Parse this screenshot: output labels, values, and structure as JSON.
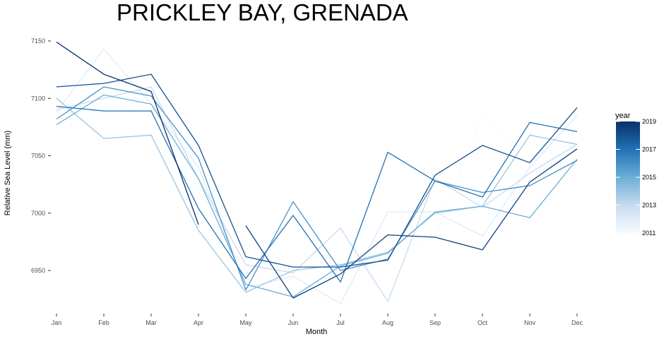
{
  "chart_data": {
    "type": "line",
    "title": "PRICKLEY BAY, GRENADA",
    "xlabel": "Month",
    "ylabel": "Relative Sea Level (mm)",
    "categories": [
      "Jan",
      "Feb",
      "Mar",
      "Apr",
      "May",
      "Jun",
      "Jul",
      "Aug",
      "Sep",
      "Oct",
      "Nov",
      "Dec"
    ],
    "ylim": [
      6910,
      7160
    ],
    "yticks": [
      6950,
      7000,
      7050,
      7100,
      7150
    ],
    "grid": false,
    "legend": {
      "title": "year",
      "position": "right",
      "type": "colorbar",
      "range": [
        2011,
        2019
      ],
      "ticks": [
        2011,
        2013,
        2015,
        2017,
        2019
      ],
      "color_low": "#f7fbff",
      "color_high": "#08306b"
    },
    "series": [
      {
        "year": 2011,
        "values": [
          7100,
          7086,
          7090,
          7020,
          6950,
          6930,
          6950,
          6962,
          6980,
          7085,
          7050,
          7060
        ]
      },
      {
        "year": 2012,
        "values": [
          7088,
          7143,
          7095,
          7040,
          6935,
          6945,
          6921,
          7001,
          7001,
          6980,
          7040,
          7085
        ]
      },
      {
        "year": 2013,
        "values": [
          7090,
          7100,
          7110,
          7030,
          6955,
          6948,
          6987,
          6923,
          7030,
          7005,
          7035,
          7060
        ]
      },
      {
        "year": 2014,
        "values": [
          7100,
          7065,
          7068,
          6985,
          6931,
          6950,
          6955,
          6966,
          7000,
          7006,
          7068,
          7060
        ]
      },
      {
        "year": 2015,
        "values": [
          7077,
          7103,
          7095,
          7030,
          6938,
          6927,
          6954,
          6965,
          7001,
          7006,
          6996,
          7047
        ]
      },
      {
        "year": 2016,
        "values": [
          7082,
          7110,
          7102,
          7048,
          6933,
          7010,
          6950,
          6960,
          7028,
          7018,
          7024,
          7046
        ]
      },
      {
        "year": 2017,
        "values": [
          7093,
          7089,
          7089,
          7004,
          6943,
          6998,
          6940,
          7053,
          7028,
          7014,
          7079,
          7071
        ]
      },
      {
        "year": 2018,
        "values": [
          7110,
          7113,
          7121,
          7059,
          6962,
          6953,
          6953,
          6959,
          7033,
          7059,
          7044,
          7092
        ]
      },
      {
        "year": 2019,
        "values": [
          7149,
          7121,
          7106,
          6990,
          null,
          null,
          null,
          null,
          null,
          null,
          null,
          null
        ]
      },
      {
        "year": 2018.5,
        "values": [
          null,
          null,
          null,
          null,
          6989,
          6926,
          6947,
          6981,
          6979,
          6968,
          7027,
          7056
        ]
      }
    ]
  }
}
